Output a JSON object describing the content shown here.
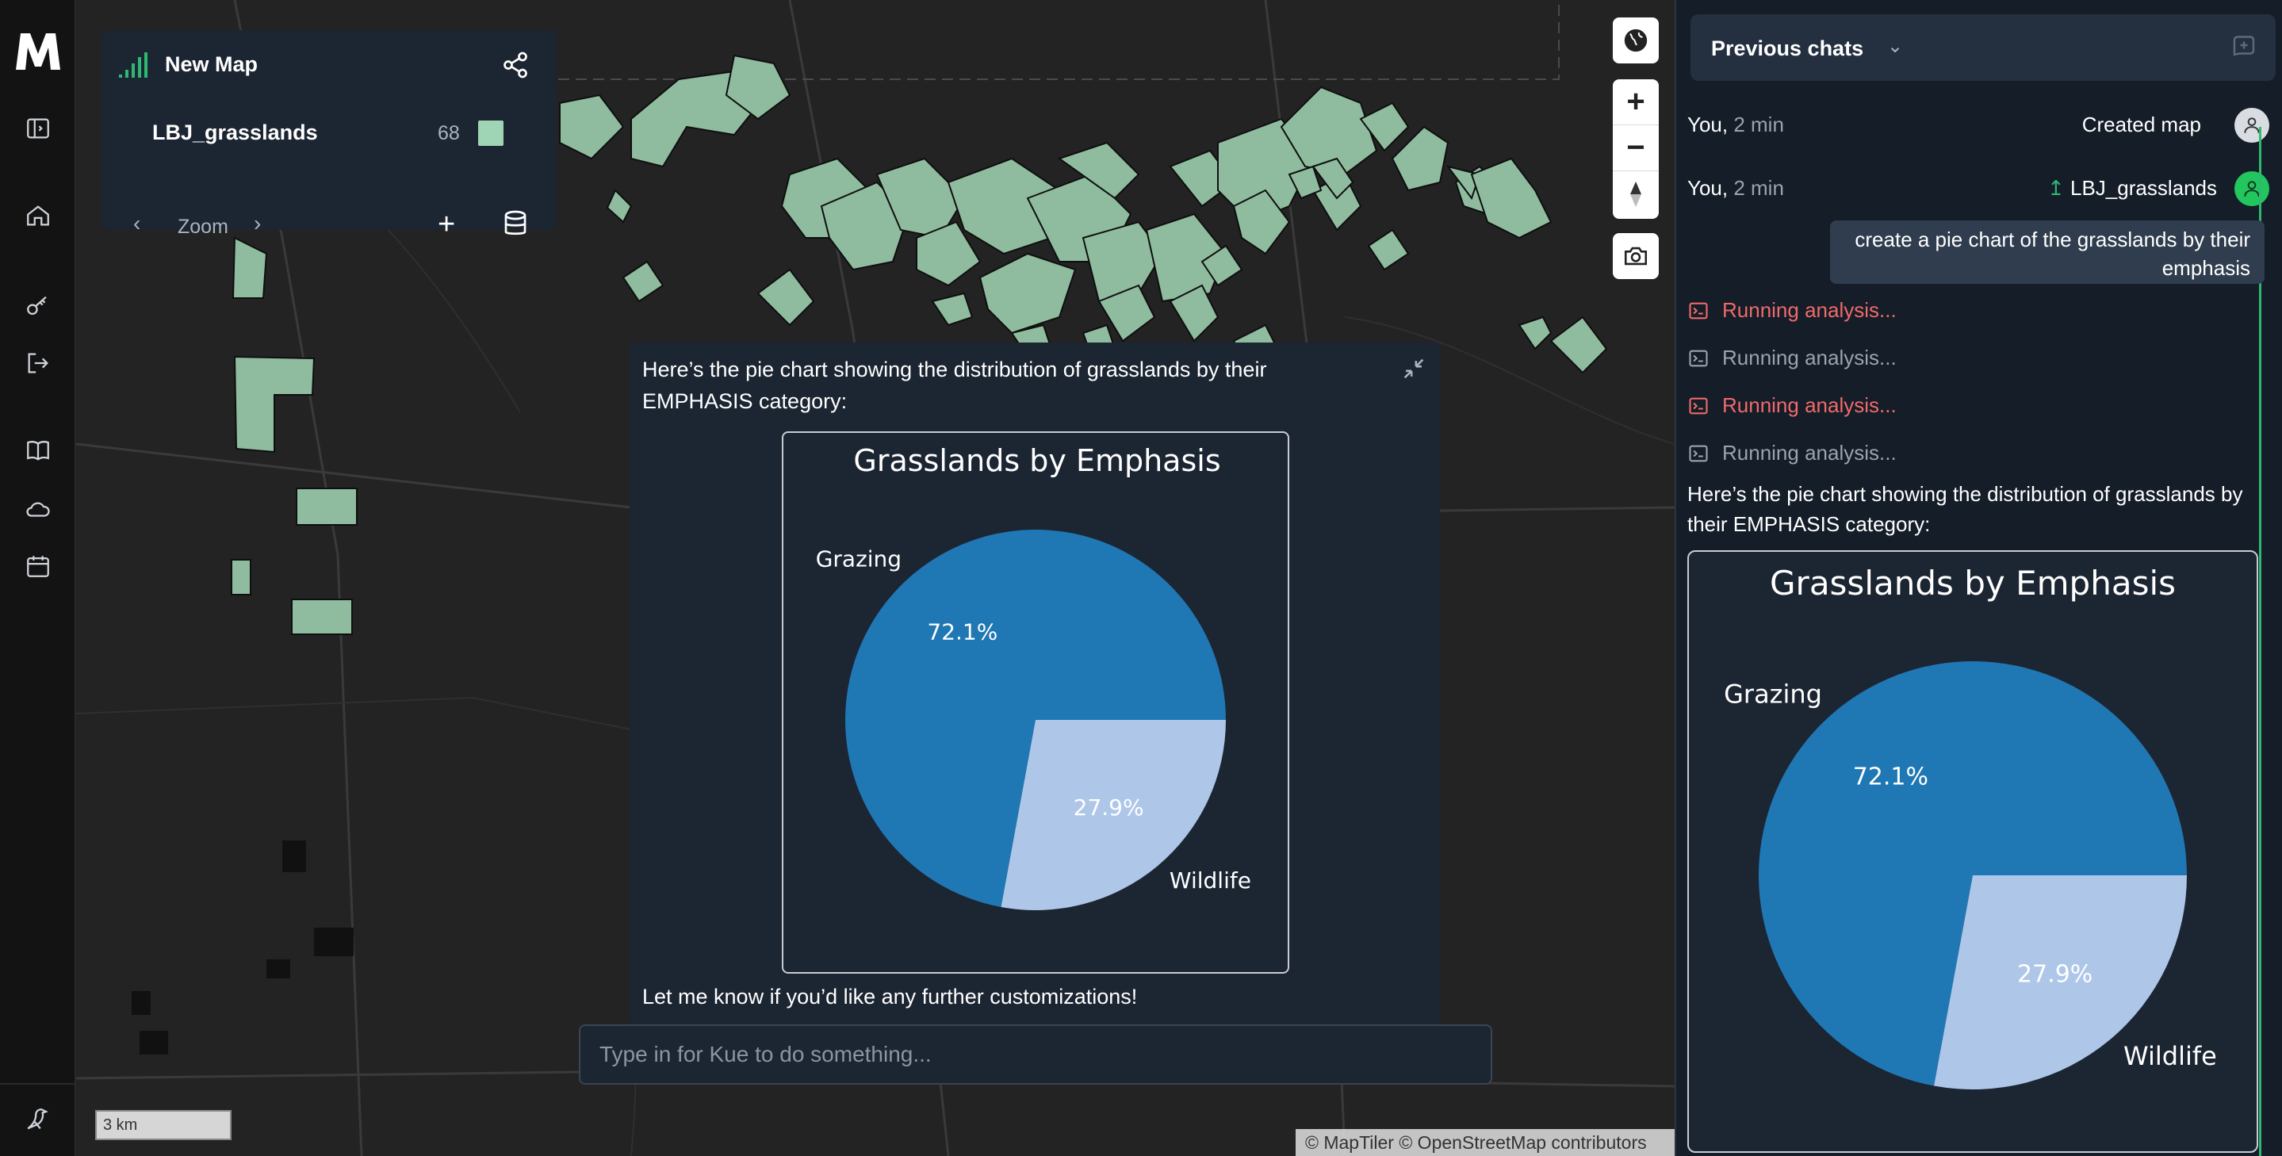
{
  "rail": {
    "icons": [
      "logo-icon",
      "sidebar-toggle-icon",
      "home-icon",
      "key-icon",
      "logout-icon",
      "book-icon",
      "cloud-icon",
      "calendar-icon",
      "bird-icon"
    ]
  },
  "layer_panel": {
    "title": "New Map",
    "layer_name": "LBJ_grasslands",
    "feature_count": "68",
    "swatch_color": "#9fd5b4",
    "zoom_label": "Zoom"
  },
  "map_chat": {
    "intro": "Here’s the pie chart showing the distribution of grasslands by their EMPHASIS category:",
    "footer": "Let me know if you’d like any further customizations!"
  },
  "chat_input": {
    "placeholder": "Type in for Kue to do something..."
  },
  "map": {
    "scale_label": "3 km",
    "attribution": "© MapTiler © OpenStreetMap contributors"
  },
  "chat_panel": {
    "header_title": "Previous chats",
    "messages": [
      {
        "author": "You,",
        "time": "2 min",
        "action": "Created map"
      },
      {
        "author": "You,",
        "time": "2 min",
        "action": "LBJ_grasslands"
      }
    ],
    "user_prompt": "create a pie chart of the grasslands by their emphasis",
    "analysis": [
      {
        "label": "Running analysis...",
        "status": "error"
      },
      {
        "label": "Running analysis...",
        "status": "ok"
      },
      {
        "label": "Running analysis...",
        "status": "error"
      },
      {
        "label": "Running analysis...",
        "status": "ok"
      }
    ],
    "reply": "Here’s the pie chart showing the distribution of grasslands by their EMPHASIS category:"
  },
  "chart_data": [
    {
      "type": "pie",
      "title": "Grasslands by Emphasis",
      "categories": [
        "Grazing",
        "Wildlife"
      ],
      "values": [
        72.1,
        27.9
      ],
      "labels": [
        "72.1%",
        "27.9%"
      ],
      "colors": [
        "#1f77b4",
        "#aec7e8"
      ]
    },
    {
      "type": "pie",
      "title": "Grasslands by Emphasis",
      "categories": [
        "Grazing",
        "Wildlife"
      ],
      "values": [
        72.1,
        27.9
      ],
      "labels": [
        "72.1%",
        "27.9%"
      ],
      "colors": [
        "#1f77b4",
        "#aec7e8"
      ]
    }
  ]
}
